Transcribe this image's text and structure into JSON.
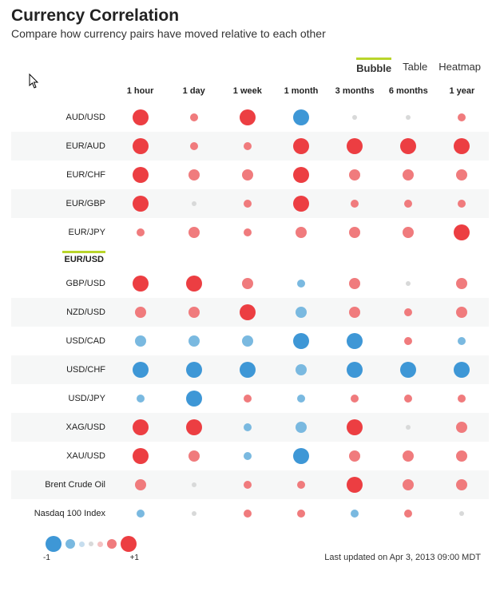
{
  "header": {
    "title": "Currency Correlation",
    "subtitle": "Compare how currency pairs have moved relative to each other"
  },
  "tabs": {
    "items": [
      "Bubble",
      "Table",
      "Heatmap"
    ],
    "active_index": 0,
    "accent_color": "#b9d52b"
  },
  "chart": {
    "type": "bubble-grid",
    "columns": [
      "1 hour",
      "1 day",
      "1 week",
      "1 month",
      "3 months",
      "6 months",
      "1 year"
    ],
    "base_pair": "EUR/USD",
    "colors": {
      "neg_strong": "#ec3e42",
      "neg_mid": "#f07b7d",
      "neutral": "#d8d9d9",
      "pos_mid": "#7ab9e0",
      "pos_strong": "#3e97d6",
      "row_alt_bg": "#f6f7f7"
    },
    "size_scale": {
      "1": 6,
      "2": 10,
      "3": 14,
      "4": 20
    },
    "rows": [
      {
        "label": "AUD/USD",
        "cells": [
          {
            "v": -0.95
          },
          {
            "v": -0.25
          },
          {
            "v": -0.95
          },
          {
            "v": 0.8
          },
          {
            "v": 0.05
          },
          {
            "v": 0.05
          },
          {
            "v": -0.3
          }
        ]
      },
      {
        "label": "EUR/AUD",
        "cells": [
          {
            "v": -0.8
          },
          {
            "v": -0.3
          },
          {
            "v": -0.2
          },
          {
            "v": -0.95
          },
          {
            "v": -0.85
          },
          {
            "v": -0.9
          },
          {
            "v": -0.95
          }
        ]
      },
      {
        "label": "EUR/CHF",
        "cells": [
          {
            "v": -0.85
          },
          {
            "v": -0.55
          },
          {
            "v": -0.45
          },
          {
            "v": -0.95
          },
          {
            "v": -0.55
          },
          {
            "v": -0.55
          },
          {
            "v": -0.55
          }
        ]
      },
      {
        "label": "EUR/GBP",
        "cells": [
          {
            "v": -0.85
          },
          {
            "v": 0.05
          },
          {
            "v": -0.35
          },
          {
            "v": -0.9
          },
          {
            "v": -0.35
          },
          {
            "v": -0.3
          },
          {
            "v": -0.35
          }
        ]
      },
      {
        "label": "EUR/JPY",
        "cells": [
          {
            "v": -0.25
          },
          {
            "v": -0.55
          },
          {
            "v": -0.35
          },
          {
            "v": -0.55
          },
          {
            "v": -0.55
          },
          {
            "v": -0.55
          },
          {
            "v": -0.95
          }
        ]
      },
      {
        "label": "GBP/USD",
        "cells": [
          {
            "v": -0.9
          },
          {
            "v": -0.95
          },
          {
            "v": -0.55
          },
          {
            "v": 0.25
          },
          {
            "v": -0.6
          },
          {
            "v": 0.05
          },
          {
            "v": -0.55
          }
        ]
      },
      {
        "label": "NZD/USD",
        "cells": [
          {
            "v": -0.55
          },
          {
            "v": -0.55
          },
          {
            "v": -0.95
          },
          {
            "v": 0.55
          },
          {
            "v": -0.55
          },
          {
            "v": -0.25
          },
          {
            "v": -0.55
          }
        ]
      },
      {
        "label": "USD/CAD",
        "cells": [
          {
            "v": 0.55
          },
          {
            "v": 0.55
          },
          {
            "v": 0.55
          },
          {
            "v": 0.85
          },
          {
            "v": 0.85
          },
          {
            "v": -0.25
          },
          {
            "v": 0.3
          }
        ]
      },
      {
        "label": "USD/CHF",
        "cells": [
          {
            "v": 0.95
          },
          {
            "v": 0.95
          },
          {
            "v": 0.9
          },
          {
            "v": 0.55
          },
          {
            "v": 0.95
          },
          {
            "v": 0.95
          },
          {
            "v": 0.95
          }
        ]
      },
      {
        "label": "USD/JPY",
        "cells": [
          {
            "v": 0.3
          },
          {
            "v": 0.8
          },
          {
            "v": -0.3
          },
          {
            "v": 0.3
          },
          {
            "v": -0.3
          },
          {
            "v": -0.3
          },
          {
            "v": -0.3
          }
        ]
      },
      {
        "label": "XAG/USD",
        "cells": [
          {
            "v": -0.85
          },
          {
            "v": -0.9
          },
          {
            "v": 0.3
          },
          {
            "v": 0.55
          },
          {
            "v": -0.9
          },
          {
            "v": 0.05
          },
          {
            "v": -0.55
          }
        ]
      },
      {
        "label": "XAU/USD",
        "cells": [
          {
            "v": -0.85
          },
          {
            "v": -0.55
          },
          {
            "v": 0.3
          },
          {
            "v": 0.8
          },
          {
            "v": -0.55
          },
          {
            "v": -0.55
          },
          {
            "v": -0.55
          }
        ]
      },
      {
        "label": "Brent Crude Oil",
        "cells": [
          {
            "v": -0.55
          },
          {
            "v": 0.05
          },
          {
            "v": -0.3
          },
          {
            "v": -0.3
          },
          {
            "v": -0.95
          },
          {
            "v": -0.55
          },
          {
            "v": -0.55
          }
        ]
      },
      {
        "label": "Nasdaq 100 Index",
        "cells": [
          {
            "v": 0.25
          },
          {
            "v": 0.05
          },
          {
            "v": -0.3
          },
          {
            "v": -0.25
          },
          {
            "v": 0.3
          },
          {
            "v": -0.25
          },
          {
            "v": 0.05
          }
        ]
      }
    ]
  },
  "legend": {
    "steps": [
      {
        "v": 1.0,
        "size": 20,
        "color": "#3e97d6"
      },
      {
        "v": 0.6,
        "size": 12,
        "color": "#7ab9e0"
      },
      {
        "v": 0.2,
        "size": 7,
        "color": "#c6ddee"
      },
      {
        "v": 0.0,
        "size": 6,
        "color": "#d8d9d9"
      },
      {
        "v": -0.2,
        "size": 7,
        "color": "#f4c2c3"
      },
      {
        "v": -0.6,
        "size": 12,
        "color": "#f07b7d"
      },
      {
        "v": -1.0,
        "size": 20,
        "color": "#ec3e42"
      }
    ],
    "left_label": "-1",
    "right_label": "+1"
  },
  "footer": {
    "updated": "Last updated on Apr 3, 2013 09:00 MDT"
  }
}
